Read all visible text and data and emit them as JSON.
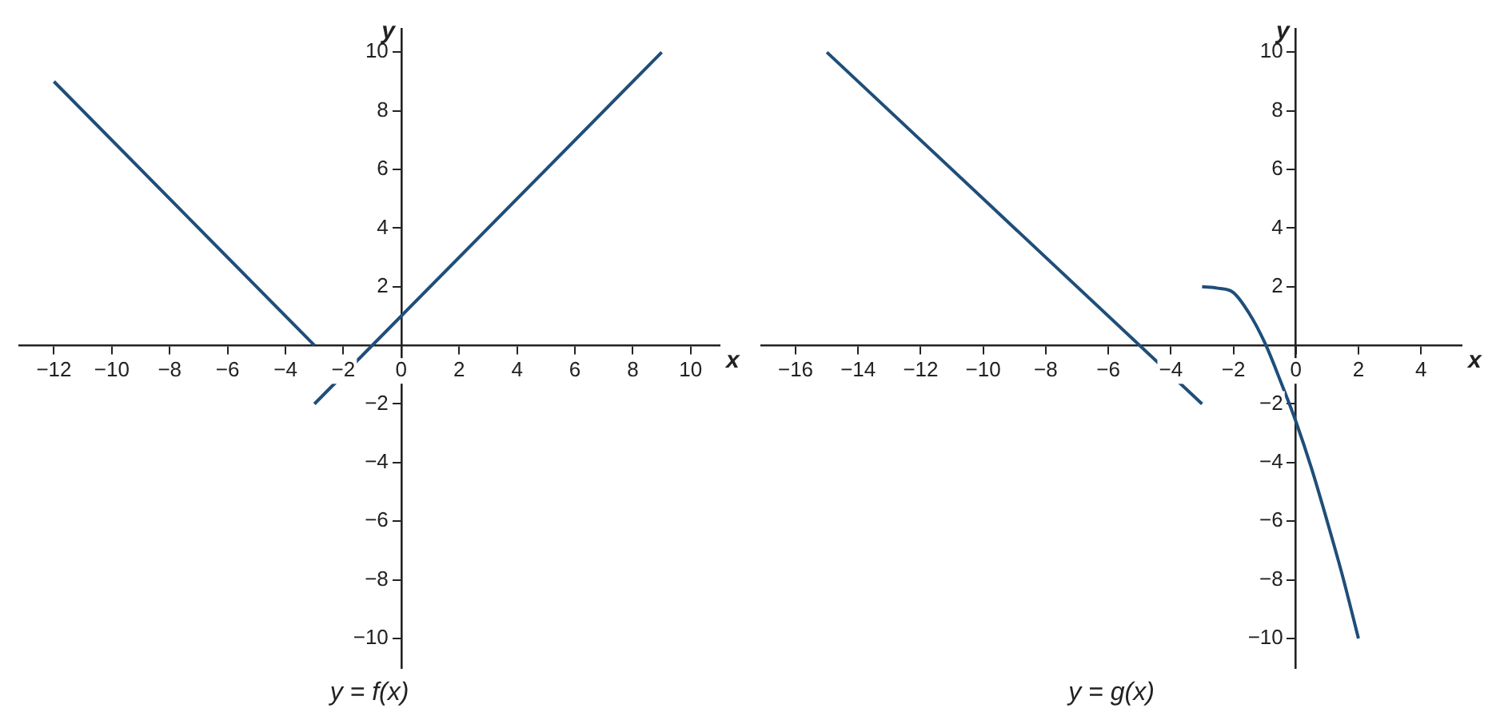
{
  "chart_data": [
    {
      "type": "line",
      "title": "y = f(x)",
      "xlabel": "x",
      "ylabel": "y",
      "grid": false,
      "legend": false,
      "marker": "none",
      "line_style": "solid",
      "xlim": [
        -13.2,
        11
      ],
      "ylim": [
        -11,
        10.8
      ],
      "xticks": [
        {
          "value": -12,
          "label": "−12"
        },
        {
          "value": -10,
          "label": "−10"
        },
        {
          "value": -8,
          "label": "−8"
        },
        {
          "value": -6,
          "label": "−6"
        },
        {
          "value": -4,
          "label": "−4"
        },
        {
          "value": -2,
          "label": "−2"
        },
        0,
        2,
        4,
        6,
        8,
        10
      ],
      "yticks": [
        {
          "value": -10,
          "label": "−10"
        },
        {
          "value": -8,
          "label": "−8"
        },
        {
          "value": -6,
          "label": "−6"
        },
        {
          "value": -4,
          "label": "−4"
        },
        {
          "value": -2,
          "label": "−2"
        },
        2,
        4,
        6,
        8,
        10
      ],
      "series": [
        {
          "color": "#1f4e79",
          "x": [
            -12,
            -3
          ],
          "values": [
            9,
            0
          ]
        },
        {
          "color": "#1f4e79",
          "x": [
            -3,
            9
          ],
          "values": [
            -2,
            10
          ]
        }
      ]
    },
    {
      "type": "line",
      "title": "y = g(x)",
      "xlabel": "x",
      "ylabel": "y",
      "grid": false,
      "legend": false,
      "marker": "none",
      "line_style": "solid",
      "xlim": [
        -17.1,
        5.3
      ],
      "ylim": [
        -11,
        10.8
      ],
      "xticks": [
        {
          "value": -16,
          "label": "−16"
        },
        {
          "value": -14,
          "label": "−14"
        },
        {
          "value": -12,
          "label": "−12"
        },
        {
          "value": -10,
          "label": "−10"
        },
        {
          "value": -8,
          "label": "−8"
        },
        {
          "value": -6,
          "label": "−6"
        },
        {
          "value": -4,
          "label": "−4"
        },
        {
          "value": -2,
          "label": "−2"
        },
        0,
        2,
        4
      ],
      "yticks": [
        {
          "value": -10,
          "label": "−10"
        },
        {
          "value": -8,
          "label": "−8"
        },
        {
          "value": -6,
          "label": "−6"
        },
        {
          "value": -4,
          "label": "−4"
        },
        {
          "value": -2,
          "label": "−2"
        },
        2,
        4,
        6,
        8,
        10
      ],
      "series": [
        {
          "color": "#1f4e79",
          "x": [
            -15,
            -3
          ],
          "values": [
            10,
            -2
          ]
        },
        {
          "color": "#1f4e79",
          "x": [
            -3,
            -2.5,
            -2,
            -1.5,
            -1,
            -0.5,
            0,
            0.5,
            1,
            1.5,
            2
          ],
          "values": [
            2,
            1.95,
            1.8,
            1.1,
            0.1,
            -1.2,
            -2.6,
            -4.2,
            -6,
            -7.9,
            -10
          ]
        }
      ]
    }
  ]
}
